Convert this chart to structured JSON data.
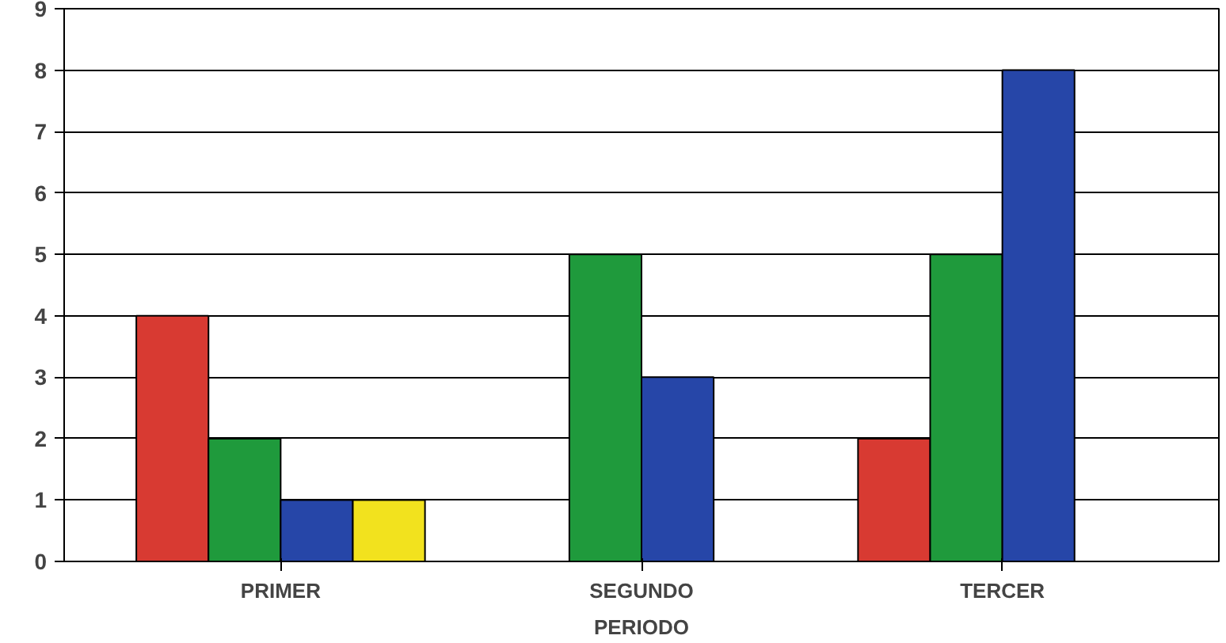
{
  "chart_data": {
    "type": "bar",
    "xlabel": "PERIODO",
    "categories": [
      "PRIMER",
      "SEGUNDO",
      "TERCER"
    ],
    "series": [
      {
        "color": "#d83a32",
        "values": [
          4,
          null,
          2
        ]
      },
      {
        "color": "#1f9a3c",
        "values": [
          2,
          5,
          5
        ]
      },
      {
        "color": "#2646a8",
        "values": [
          1,
          3,
          8
        ]
      },
      {
        "color": "#f2e21e",
        "values": [
          1,
          null,
          null
        ]
      }
    ],
    "ylim": [
      0,
      9
    ],
    "yticks": [
      0,
      1,
      2,
      3,
      4,
      5,
      6,
      7,
      8,
      9
    ],
    "grid": "y"
  }
}
